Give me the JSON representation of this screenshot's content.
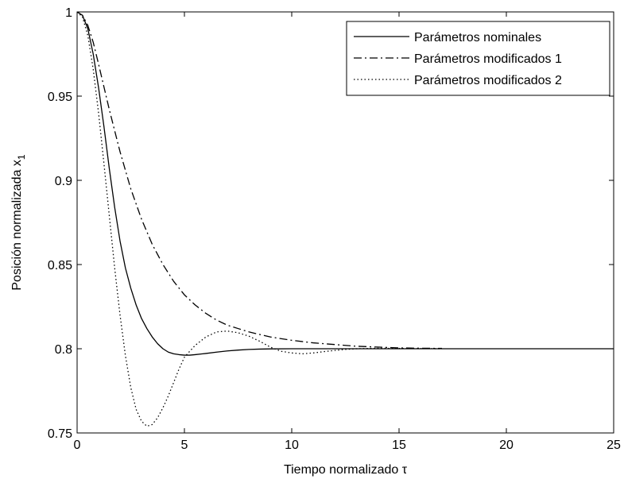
{
  "chart_data": {
    "type": "line",
    "title": "",
    "xlabel": "Tiempo normalizado τ",
    "ylabel_main": "Posición normalizada x",
    "ylabel_sub": "1",
    "xlim": [
      0,
      25
    ],
    "ylim": [
      0.75,
      1.0
    ],
    "x_ticks": [
      0,
      5,
      10,
      15,
      20,
      25
    ],
    "x_tick_labels": [
      "0",
      "5",
      "10",
      "15",
      "20",
      "25"
    ],
    "y_ticks": [
      0.75,
      0.8,
      0.85,
      0.9,
      0.95,
      1.0
    ],
    "y_tick_labels": [
      "0.75",
      "0.8",
      "0.85",
      "0.9",
      "0.95",
      "1"
    ],
    "grid": false,
    "legend_position": "top-right",
    "series": [
      {
        "name": "Parámetros nominales",
        "line_style": "solid",
        "color": "#000000",
        "x": [
          0,
          0.25,
          0.5,
          0.75,
          1.0,
          1.25,
          1.5,
          1.75,
          2.0,
          2.25,
          2.5,
          2.75,
          3.0,
          3.25,
          3.5,
          3.75,
          4.0,
          4.25,
          4.5,
          4.75,
          5.0,
          5.25,
          5.5,
          6.0,
          6.5,
          7.0,
          7.5,
          8.0,
          8.5,
          9.0,
          10.0,
          11.0,
          12.0,
          13.0,
          15.0,
          17.0,
          20.0,
          25.0
        ],
        "y": [
          1.0,
          0.998,
          0.99,
          0.975,
          0.955,
          0.932,
          0.907,
          0.884,
          0.864,
          0.848,
          0.836,
          0.826,
          0.818,
          0.812,
          0.807,
          0.803,
          0.8,
          0.798,
          0.797,
          0.7965,
          0.7962,
          0.7962,
          0.7965,
          0.7972,
          0.798,
          0.7987,
          0.7992,
          0.7996,
          0.7998,
          0.7999,
          0.8,
          0.8,
          0.8,
          0.8,
          0.8,
          0.8,
          0.8,
          0.8
        ]
      },
      {
        "name": "Parámetros modificados 1",
        "line_style": "dashdot",
        "color": "#000000",
        "x": [
          0,
          0.25,
          0.5,
          0.75,
          1.0,
          1.5,
          2.0,
          2.5,
          3.0,
          3.5,
          4.0,
          4.5,
          5.0,
          5.5,
          6.0,
          6.5,
          7.0,
          7.5,
          8.0,
          9.0,
          10.0,
          11.0,
          12.0,
          13.0,
          14.0,
          15.0,
          16.0,
          17.0
        ],
        "y": [
          1.0,
          0.998,
          0.992,
          0.982,
          0.969,
          0.942,
          0.917,
          0.895,
          0.877,
          0.862,
          0.85,
          0.84,
          0.832,
          0.826,
          0.821,
          0.817,
          0.814,
          0.812,
          0.81,
          0.807,
          0.805,
          0.8035,
          0.8025,
          0.8015,
          0.801,
          0.8005,
          0.8003,
          0.8002
        ]
      },
      {
        "name": "Parámetros modificados 2",
        "line_style": "dotted",
        "color": "#000000",
        "x": [
          0,
          0.25,
          0.5,
          0.75,
          1.0,
          1.25,
          1.5,
          1.75,
          2.0,
          2.25,
          2.5,
          2.75,
          3.0,
          3.25,
          3.5,
          3.75,
          4.0,
          4.25,
          4.5,
          4.75,
          5.0,
          5.5,
          6.0,
          6.5,
          7.0,
          7.5,
          8.0,
          8.5,
          9.0,
          9.5,
          10.0,
          10.5,
          11.0,
          11.5,
          12.0,
          12.5,
          13.0,
          14.0,
          15.0,
          16.0,
          17.0
        ],
        "y": [
          1.0,
          0.997,
          0.986,
          0.966,
          0.94,
          0.91,
          0.879,
          0.848,
          0.82,
          0.796,
          0.777,
          0.764,
          0.757,
          0.754,
          0.755,
          0.759,
          0.765,
          0.772,
          0.78,
          0.788,
          0.795,
          0.802,
          0.807,
          0.81,
          0.8105,
          0.8095,
          0.8075,
          0.8045,
          0.801,
          0.7985,
          0.7975,
          0.797,
          0.7975,
          0.7983,
          0.799,
          0.7996,
          0.8,
          0.8003,
          0.8002,
          0.8001,
          0.8
        ]
      }
    ]
  }
}
